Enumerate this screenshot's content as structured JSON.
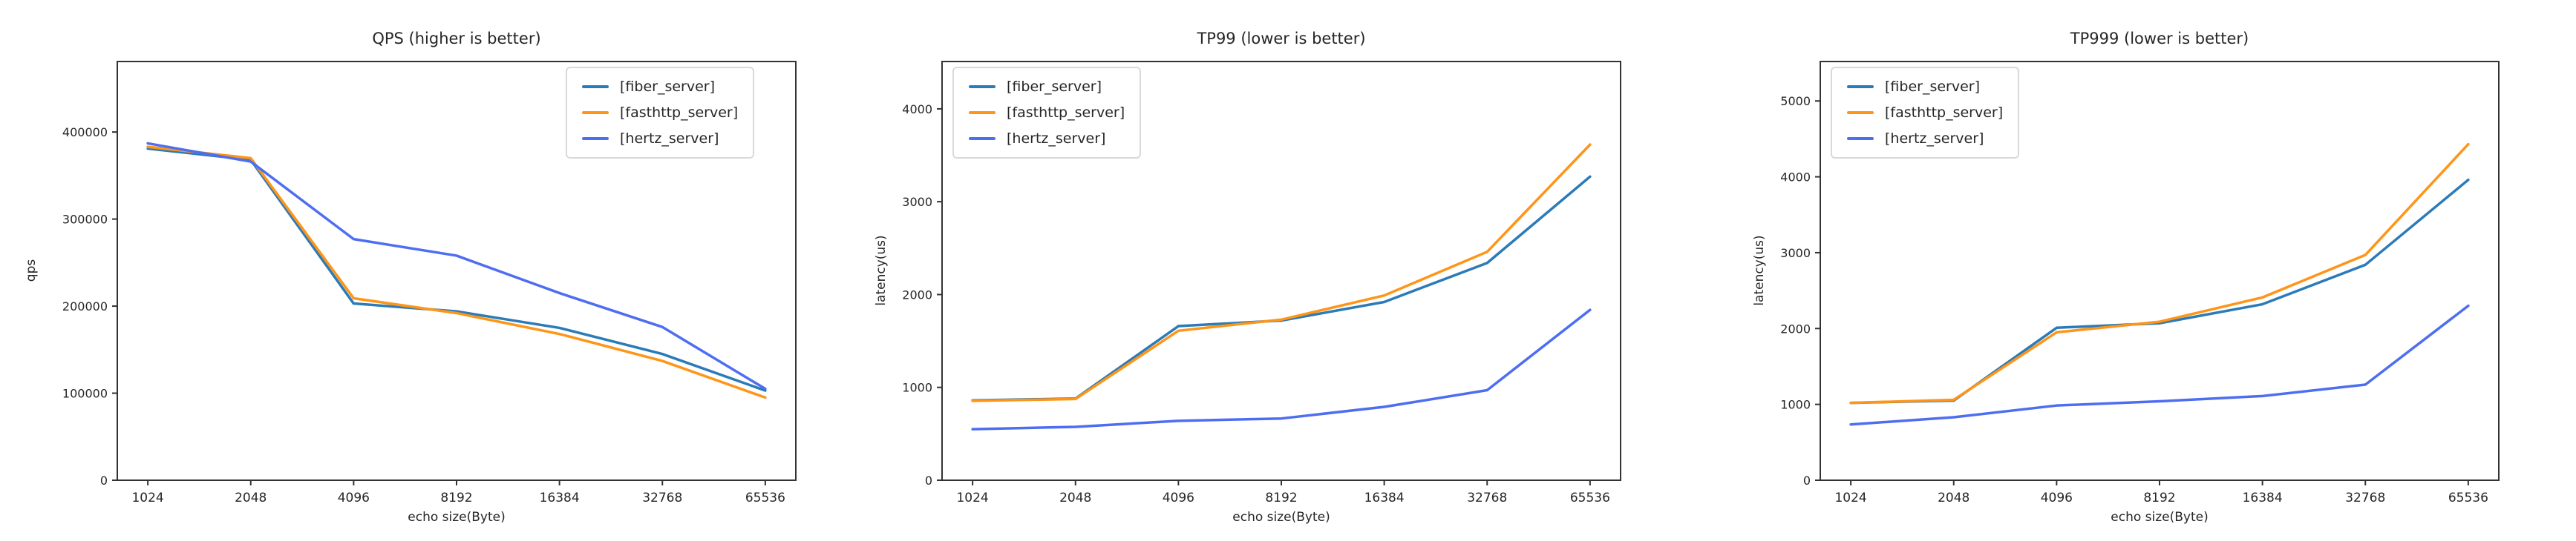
{
  "figure": {
    "background": "#ffffff",
    "spine_color": "#333333",
    "tick_label_color": "#262626"
  },
  "chart_data": [
    {
      "type": "line",
      "title": "QPS (higher is better)",
      "xlabel": "echo size(Byte)",
      "ylabel": "qps",
      "categories": [
        "1024",
        "2048",
        "4096",
        "8192",
        "16384",
        "32768",
        "65536"
      ],
      "yticks": [
        0,
        100000,
        200000,
        300000,
        400000
      ],
      "ylim": [
        0,
        481000
      ],
      "grid": false,
      "legend_position": "top-right",
      "series": [
        {
          "name": "[fiber_server]",
          "color": "#2b7bb9",
          "values": [
            381000,
            368000,
            203000,
            194000,
            175000,
            145000,
            103000
          ]
        },
        {
          "name": "[fasthttp_server]",
          "color": "#ff9518",
          "values": [
            383000,
            370000,
            209000,
            192000,
            168000,
            137000,
            95000
          ]
        },
        {
          "name": "[hertz_server]",
          "color": "#4e6ef2",
          "values": [
            387000,
            366000,
            277000,
            258000,
            215000,
            176000,
            105000
          ]
        }
      ]
    },
    {
      "type": "line",
      "title": "TP99 (lower is better)",
      "xlabel": "echo size(Byte)",
      "ylabel": "latency(us)",
      "categories": [
        "1024",
        "2048",
        "4096",
        "8192",
        "16384",
        "32768",
        "65536"
      ],
      "yticks": [
        0,
        1000,
        2000,
        3000,
        4000
      ],
      "ylim": [
        0,
        4510
      ],
      "grid": false,
      "legend_position": "top-left",
      "series": [
        {
          "name": "[fiber_server]",
          "color": "#2b7bb9",
          "values": [
            860,
            880,
            1660,
            1720,
            1920,
            2340,
            3270
          ]
        },
        {
          "name": "[fasthttp_server]",
          "color": "#ff9518",
          "values": [
            855,
            875,
            1610,
            1730,
            1990,
            2460,
            3615
          ]
        },
        {
          "name": "[hertz_server]",
          "color": "#4e6ef2",
          "values": [
            550,
            575,
            640,
            665,
            790,
            970,
            1835
          ]
        }
      ]
    },
    {
      "type": "line",
      "title": "TP999 (lower is better)",
      "xlabel": "echo size(Byte)",
      "ylabel": "latency(us)",
      "categories": [
        "1024",
        "2048",
        "4096",
        "8192",
        "16384",
        "32768",
        "65536"
      ],
      "yticks": [
        0,
        1000,
        2000,
        3000,
        4000,
        5000
      ],
      "ylim": [
        0,
        5520
      ],
      "grid": false,
      "legend_position": "top-left",
      "series": [
        {
          "name": "[fiber_server]",
          "color": "#2b7bb9",
          "values": [
            1020,
            1050,
            2010,
            2070,
            2320,
            2840,
            3960
          ]
        },
        {
          "name": "[fasthttp_server]",
          "color": "#ff9518",
          "values": [
            1020,
            1060,
            1950,
            2090,
            2410,
            2970,
            4430
          ]
        },
        {
          "name": "[hertz_server]",
          "color": "#4e6ef2",
          "values": [
            735,
            830,
            985,
            1040,
            1110,
            1260,
            2300
          ]
        }
      ]
    }
  ]
}
